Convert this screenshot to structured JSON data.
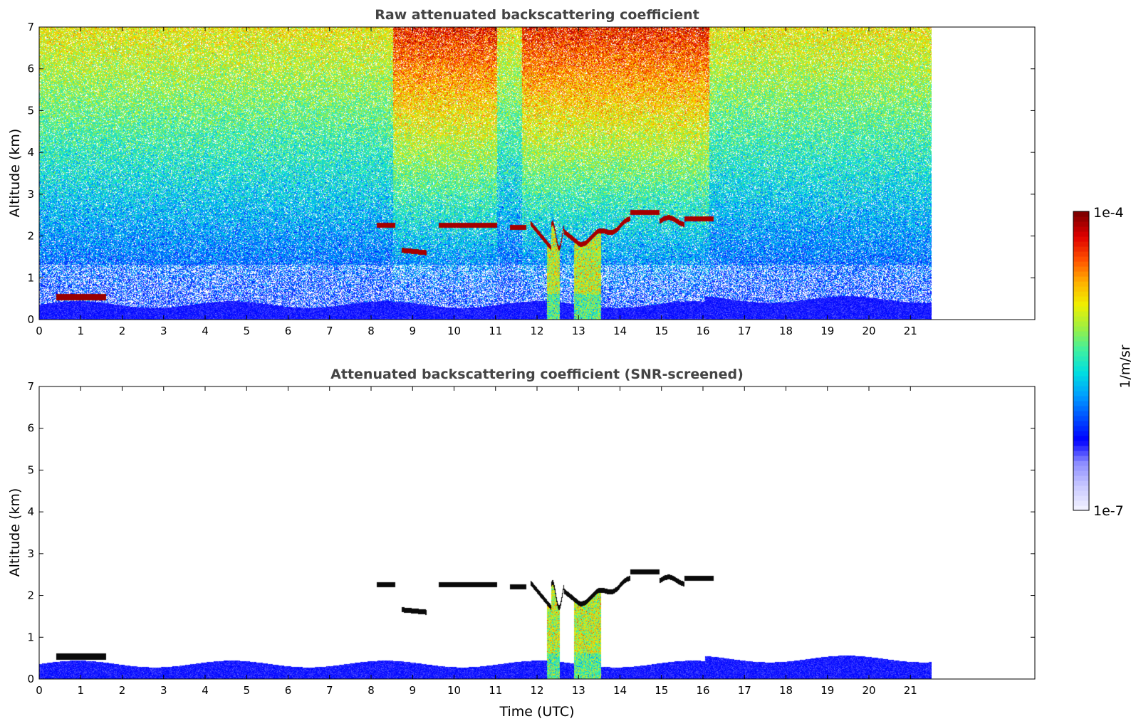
{
  "chart_data": [
    {
      "type": "heatmap",
      "title": "Raw attenuated backscattering coefficient",
      "xlabel": "",
      "ylabel": "Altitude (km)",
      "xlim": [
        0,
        24
      ],
      "ylim": [
        0,
        7
      ],
      "x_data_extent": [
        0,
        21.45
      ],
      "xticks": [
        "0",
        "1",
        "2",
        "3",
        "4",
        "5",
        "6",
        "7",
        "8",
        "9",
        "10",
        "11",
        "12",
        "13",
        "14",
        "15",
        "16",
        "17",
        "18",
        "19",
        "20",
        "21"
      ],
      "yticks": [
        "0",
        "1",
        "2",
        "3",
        "4",
        "5",
        "6",
        "7"
      ],
      "features": {
        "boundary_layer_top_km": 0.4,
        "high_signal_periods_utc": [
          [
            8.5,
            11.0
          ],
          [
            11.6,
            16.1
          ]
        ],
        "cloud_layer_km": 2.3,
        "precipitation_shafts_utc": [
          [
            12.2,
            12.5
          ],
          [
            12.85,
            13.5
          ]
        ]
      }
    },
    {
      "type": "heatmap",
      "title": "Attenuated backscattering coefficient (SNR-screened)",
      "xlabel": "Time (UTC)",
      "ylabel": "Altitude (km)",
      "xlim": [
        0,
        24
      ],
      "ylim": [
        0,
        7
      ],
      "x_data_extent": [
        0,
        21.45
      ],
      "xticks": [
        "0",
        "1",
        "2",
        "3",
        "4",
        "5",
        "6",
        "7",
        "8",
        "9",
        "10",
        "11",
        "12",
        "13",
        "14",
        "15",
        "16",
        "17",
        "18",
        "19",
        "20",
        "21"
      ],
      "yticks": [
        "0",
        "1",
        "2",
        "3",
        "4",
        "5",
        "6",
        "7"
      ],
      "features": {
        "boundary_layer_top_km": 0.45,
        "cloud_layer_km": 2.3,
        "precipitation_shafts_utc": [
          [
            12.2,
            12.5
          ],
          [
            12.85,
            13.5
          ]
        ]
      }
    }
  ],
  "colorbar": {
    "label": "1/m/sr",
    "max_label": "1e-4",
    "min_label": "1e-7",
    "scale": "log",
    "range": [
      1e-07,
      0.0001
    ],
    "colors": [
      "#f0f0ff",
      "#c8c8ff",
      "#8c8cff",
      "#0000ff",
      "#0050ff",
      "#00a0ff",
      "#00e0e0",
      "#40f0a0",
      "#a0f040",
      "#f0f000",
      "#ffb000",
      "#ff5000",
      "#e00000",
      "#800000"
    ]
  }
}
